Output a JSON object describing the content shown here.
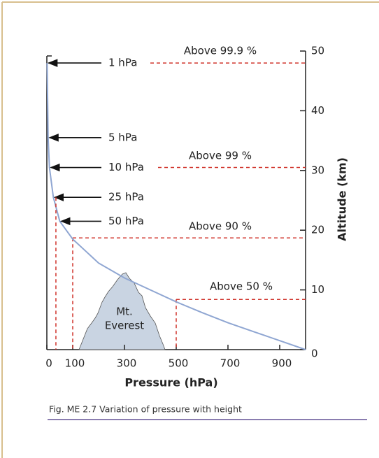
{
  "chart_data": {
    "type": "line",
    "x_label": "Pressure (hPa)",
    "y_label": "Altitude (km)",
    "caption": "Fig. ME 2.7   Variation of pressure with height",
    "xlim": [
      0,
      1000
    ],
    "xticks": [
      0,
      100,
      300,
      500,
      700,
      900
    ],
    "ylim": [
      0,
      50
    ],
    "yticks": [
      0,
      10,
      20,
      30,
      40,
      50
    ],
    "series": [
      {
        "color": "#8fa6d2",
        "x": [
          1000,
          900,
          800,
          700,
          600,
          500,
          400,
          300,
          200,
          100,
          50,
          25,
          10,
          5,
          1
        ],
        "values": [
          0,
          1.5,
          3,
          4.5,
          6.2,
          8,
          10,
          12,
          14.5,
          18.5,
          21.5,
          25.5,
          30.5,
          35.5,
          48
        ]
      }
    ],
    "pressure_labels": [
      {
        "text": "1 hPa",
        "y": 48
      },
      {
        "text": "5 hPa",
        "y": 35.5
      },
      {
        "text": "10 hPa",
        "y": 30.5
      },
      {
        "text": "25 hPa",
        "y": 25.5,
        "x": 35
      },
      {
        "text": "50 hPa",
        "y": 21.5
      }
    ],
    "annotations": [
      {
        "text": "Above 99.9 %",
        "y": 48
      },
      {
        "text": "Above 99 %",
        "y": 30.5
      },
      {
        "text": "Above 90 %",
        "y": 18.7,
        "x": 100
      },
      {
        "text": "Above 50 %",
        "y": 8.4,
        "x": 500
      }
    ],
    "mountain": {
      "lines": [
        "Mt.",
        "Everest"
      ]
    }
  }
}
